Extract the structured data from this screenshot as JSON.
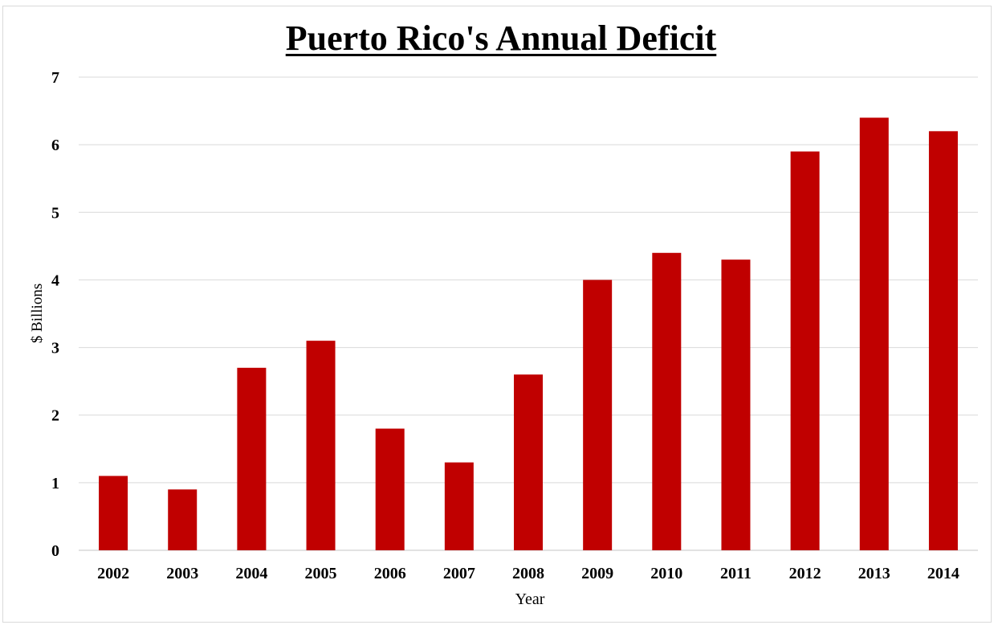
{
  "chart_data": {
    "type": "bar",
    "title": "Puerto Rico's Annual Deficit",
    "xlabel": "Year",
    "ylabel": "$ Billions",
    "categories": [
      "2002",
      "2003",
      "2004",
      "2005",
      "2006",
      "2007",
      "2008",
      "2009",
      "2010",
      "2011",
      "2012",
      "2013",
      "2014"
    ],
    "values": [
      1.1,
      0.9,
      2.7,
      3.1,
      1.8,
      1.3,
      2.6,
      4.0,
      4.4,
      4.3,
      5.9,
      6.4,
      6.2
    ],
    "ylim": [
      0,
      7
    ],
    "yticks": [
      "0",
      "1",
      "2",
      "3",
      "4",
      "5",
      "6",
      "7"
    ],
    "grid": true,
    "legend": "none",
    "colors": {
      "bar": "#c00000",
      "grid": "#d9d9d9",
      "text": "#000000"
    }
  }
}
